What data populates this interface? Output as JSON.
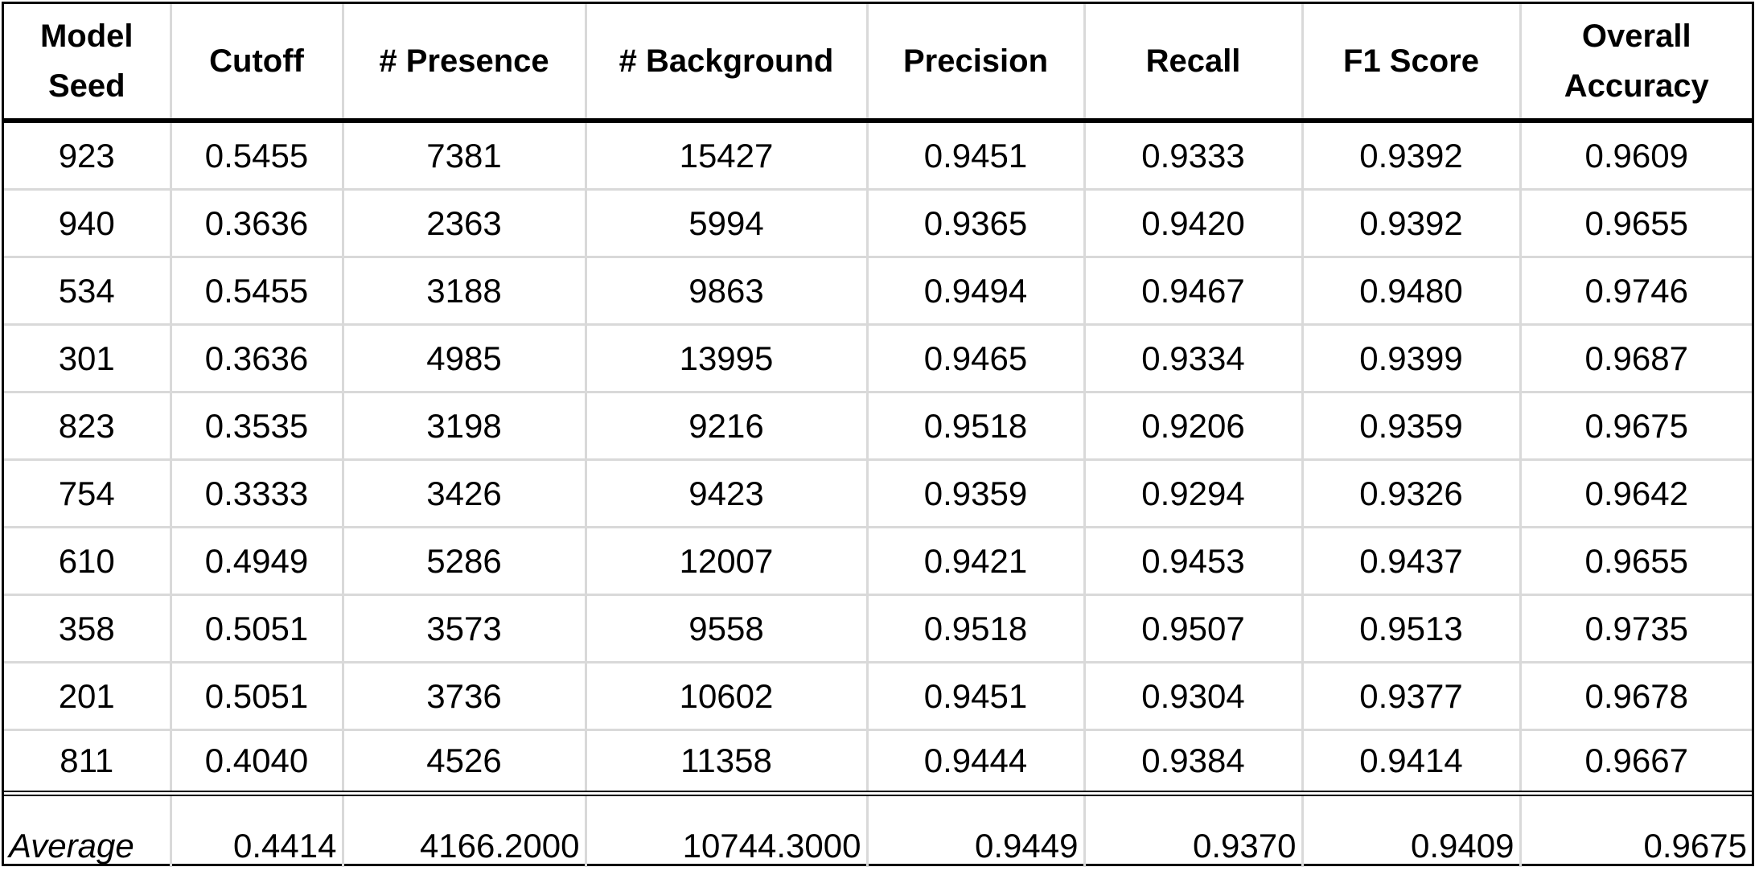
{
  "chart_data": {
    "type": "table",
    "columns": [
      "Model Seed",
      "Cutoff",
      "# Presence",
      "# Background",
      "Precision",
      "Recall",
      "F1 Score",
      "Overall Accuracy"
    ],
    "rows": [
      [
        "923",
        "0.5455",
        "7381",
        "15427",
        "0.9451",
        "0.9333",
        "0.9392",
        "0.9609"
      ],
      [
        "940",
        "0.3636",
        "2363",
        "5994",
        "0.9365",
        "0.9420",
        "0.9392",
        "0.9655"
      ],
      [
        "534",
        "0.5455",
        "3188",
        "9863",
        "0.9494",
        "0.9467",
        "0.9480",
        "0.9746"
      ],
      [
        "301",
        "0.3636",
        "4985",
        "13995",
        "0.9465",
        "0.9334",
        "0.9399",
        "0.9687"
      ],
      [
        "823",
        "0.3535",
        "3198",
        "9216",
        "0.9518",
        "0.9206",
        "0.9359",
        "0.9675"
      ],
      [
        "754",
        "0.3333",
        "3426",
        "9423",
        "0.9359",
        "0.9294",
        "0.9326",
        "0.9642"
      ],
      [
        "610",
        "0.4949",
        "5286",
        "12007",
        "0.9421",
        "0.9453",
        "0.9437",
        "0.9655"
      ],
      [
        "358",
        "0.5051",
        "3573",
        "9558",
        "0.9518",
        "0.9507",
        "0.9513",
        "0.9735"
      ],
      [
        "201",
        "0.5051",
        "3736",
        "10602",
        "0.9451",
        "0.9304",
        "0.9377",
        "0.9678"
      ],
      [
        "811",
        "0.4040",
        "4526",
        "11358",
        "0.9444",
        "0.9384",
        "0.9414",
        "0.9667"
      ]
    ],
    "summary_row": [
      "Average",
      "0.4414",
      "4166.2000",
      "10744.3000",
      "0.9449",
      "0.9370",
      "0.9409",
      "0.9675"
    ]
  },
  "colors": {
    "border": "#000000",
    "gridline": "#d9d9d9",
    "background": "#ffffff",
    "text": "#000000"
  }
}
